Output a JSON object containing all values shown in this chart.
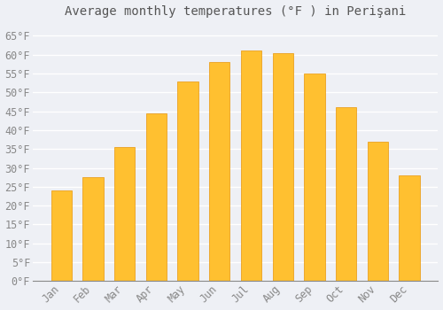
{
  "title": "Average monthly temperatures (°F ) in Perişani",
  "months": [
    "Jan",
    "Feb",
    "Mar",
    "Apr",
    "May",
    "Jun",
    "Jul",
    "Aug",
    "Sep",
    "Oct",
    "Nov",
    "Dec"
  ],
  "values": [
    24,
    27.5,
    35.5,
    44.5,
    53,
    58,
    61,
    60.5,
    55,
    46,
    37,
    28
  ],
  "bar_color_top": "#FFC030",
  "bar_color_bottom": "#FFB000",
  "bar_edge_color": "#E8960A",
  "background_color": "#EEF0F5",
  "grid_color": "#FFFFFF",
  "text_color": "#888888",
  "title_color": "#555555",
  "ylim": [
    0,
    68
  ],
  "yticks": [
    0,
    5,
    10,
    15,
    20,
    25,
    30,
    35,
    40,
    45,
    50,
    55,
    60,
    65
  ],
  "title_fontsize": 10,
  "tick_fontsize": 8.5
}
